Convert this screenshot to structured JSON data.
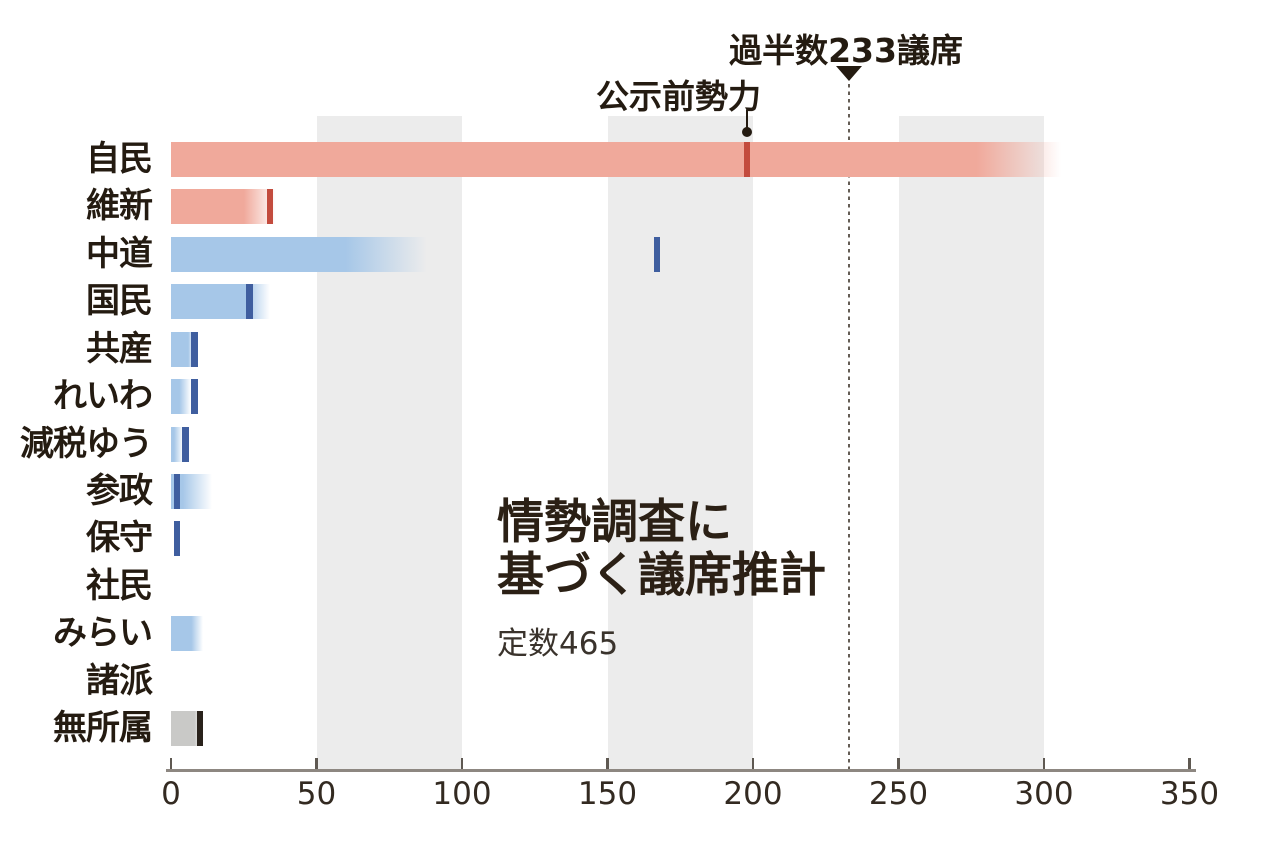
{
  "page": {
    "background": "#ffffff"
  },
  "title": {
    "line1": "情勢調査に",
    "line2": "基づく議席推計",
    "subtitle": "定数465"
  },
  "annotations": {
    "majority_label": "過半数233議席",
    "majority_value": 233,
    "pre_election_label": "公示前勢力",
    "pre_election_pointer_value": 198
  },
  "colors": {
    "ruling_bar": "#f0a99b",
    "ruling_tick": "#c34b3d",
    "opposition_bar": "#a6c7e8",
    "opposition_tick": "#3f5e9f",
    "independent_bar": "#c9c9c7",
    "independent_tick": "#29221b",
    "grid_band": "#ececec",
    "text": "#241b11",
    "axis_line": "#8d8781",
    "dotted_line": "#645d55"
  },
  "chart_data": {
    "type": "bar",
    "orientation": "horizontal",
    "title": "情勢調査に基づく議席推計",
    "subtitle": "定数465",
    "xlabel": "議席",
    "xlim": [
      0,
      350
    ],
    "x_ticks": [
      0,
      50,
      100,
      150,
      200,
      250,
      300,
      350
    ],
    "grid_bands": [
      [
        50,
        100
      ],
      [
        150,
        200
      ],
      [
        250,
        300
      ]
    ],
    "majority_line": 233,
    "majority_line_label": "過半数233議席",
    "tick_meaning": "公示前勢力",
    "rows": [
      {
        "label": "自民",
        "bar_color": "#f0a99b",
        "projected_solid": 277,
        "projected_max": 306,
        "pre_election": 198,
        "tick_color": "#c34b3d"
      },
      {
        "label": "維新",
        "bar_color": "#f0a99b",
        "projected_solid": 25,
        "projected_max": 36,
        "pre_election": 34,
        "tick_color": "#c34b3d"
      },
      {
        "label": "中道",
        "bar_color": "#a6c7e8",
        "projected_solid": 60,
        "projected_max": 88,
        "pre_election": 167,
        "tick_color": "#3f5e9f"
      },
      {
        "label": "国民",
        "bar_color": "#a6c7e8",
        "projected_solid": 26,
        "projected_max": 34,
        "pre_election": 27,
        "tick_color": "#3f5e9f"
      },
      {
        "label": "共産",
        "bar_color": "#a6c7e8",
        "projected_solid": 6,
        "projected_max": 8,
        "pre_election": 8,
        "tick_color": "#3f5e9f"
      },
      {
        "label": "れいわ",
        "bar_color": "#a6c7e8",
        "projected_solid": 3,
        "projected_max": 7,
        "pre_election": 8,
        "tick_color": "#3f5e9f"
      },
      {
        "label": "減税ゆう",
        "bar_color": "#a6c7e8",
        "projected_solid": 1,
        "projected_max": 4,
        "pre_election": 5,
        "tick_color": "#3f5e9f"
      },
      {
        "label": "参政",
        "bar_color": "#a6c7e8",
        "projected_solid": 4,
        "projected_max": 14,
        "pre_election": 2,
        "tick_color": "#3f5e9f"
      },
      {
        "label": "保守",
        "bar_color": "#a6c7e8",
        "projected_solid": 0,
        "projected_max": 0,
        "pre_election": 2,
        "tick_color": "#3f5e9f"
      },
      {
        "label": "社民",
        "bar_color": "#a6c7e8",
        "projected_solid": 0,
        "projected_max": 0,
        "pre_election": null,
        "tick_color": null
      },
      {
        "label": "みらい",
        "bar_color": "#a6c7e8",
        "projected_solid": 7,
        "projected_max": 11,
        "pre_election": null,
        "tick_color": null
      },
      {
        "label": "諸派",
        "bar_color": null,
        "projected_solid": 0,
        "projected_max": 0,
        "pre_election": null,
        "tick_color": null
      },
      {
        "label": "無所属",
        "bar_color": "#c9c9c7",
        "projected_solid": 8,
        "projected_max": 11,
        "pre_election": 10,
        "tick_color": "#29221b"
      }
    ]
  }
}
